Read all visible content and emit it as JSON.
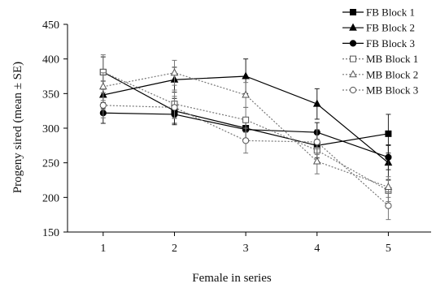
{
  "chart_data": {
    "type": "line",
    "xlabel": "Female in series",
    "ylabel": "Progeny sired (mean ± SE)",
    "x": [
      1,
      2,
      3,
      4,
      5
    ],
    "xlim": [
      0.5,
      5.6
    ],
    "ylim": [
      150,
      450
    ],
    "yticks": [
      150,
      200,
      250,
      300,
      350,
      400,
      450
    ],
    "xticks": [
      1,
      2,
      3,
      4,
      5
    ],
    "grid": false,
    "legend_position": "top-right",
    "series": [
      {
        "name": "FB Block 1",
        "values": [
          381,
          325,
          300,
          275,
          292
        ],
        "se": [
          22,
          18,
          15,
          18,
          28
        ],
        "style": "solid",
        "marker": "square-filled"
      },
      {
        "name": "FB Block 2",
        "values": [
          348,
          370,
          375,
          335,
          250
        ],
        "se": [
          20,
          18,
          25,
          22,
          25
        ],
        "style": "solid",
        "marker": "triangle-filled"
      },
      {
        "name": "FB Block 3",
        "values": [
          322,
          320,
          298,
          294,
          258
        ],
        "se": [
          15,
          15,
          15,
          14,
          18
        ],
        "style": "solid",
        "marker": "circle-filled"
      },
      {
        "name": "MB Block 1",
        "values": [
          381,
          335,
          312,
          268,
          210
        ],
        "se": [
          25,
          20,
          18,
          16,
          16
        ],
        "style": "dotted",
        "marker": "square-open"
      },
      {
        "name": "MB Block 2",
        "values": [
          360,
          380,
          348,
          252,
          215
        ],
        "se": [
          20,
          18,
          18,
          18,
          15
        ],
        "style": "dotted",
        "marker": "triangle-open"
      },
      {
        "name": "MB Block 3",
        "values": [
          333,
          330,
          282,
          280,
          188
        ],
        "se": [
          18,
          16,
          18,
          18,
          20
        ],
        "style": "dotted",
        "marker": "circle-open"
      }
    ]
  }
}
